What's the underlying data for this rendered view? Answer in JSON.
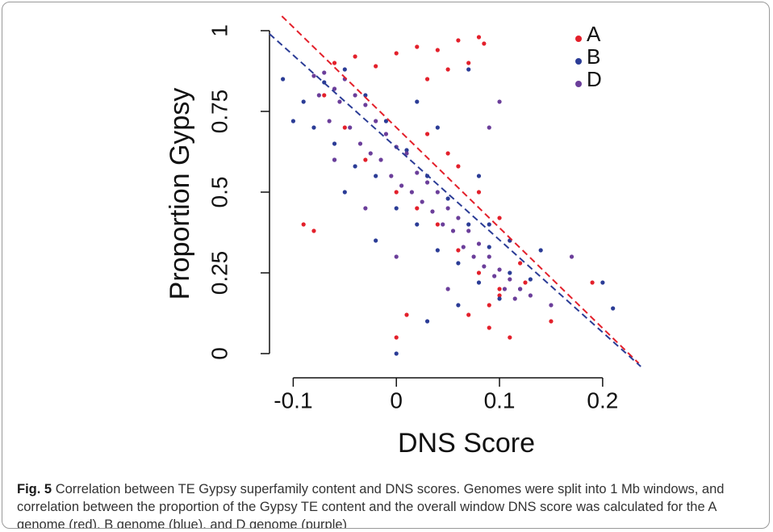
{
  "chart_data": {
    "type": "scatter",
    "xlabel": "DNS Score",
    "ylabel": "Proportion Gypsy",
    "xlim": [
      -0.123,
      0.24
    ],
    "ylim": [
      -0.075,
      1.05
    ],
    "xticks": [
      -0.1,
      0,
      0.1,
      0.2
    ],
    "yticks": [
      0,
      0.25,
      0.5,
      0.75,
      1
    ],
    "legend": "top-right",
    "series": [
      {
        "name": "A",
        "color": "#e3202b",
        "x": [
          -0.06,
          -0.04,
          -0.02,
          0.0,
          0.02,
          0.04,
          0.06,
          0.08,
          0.085,
          0.07,
          0.05,
          0.03,
          0.06,
          0.08,
          0.1,
          0.11,
          0.12,
          0.1,
          0.09,
          0.07,
          -0.07,
          -0.05,
          -0.03,
          0.0,
          0.02,
          0.04,
          0.06,
          0.08,
          0.1,
          0.125,
          0.15,
          0.19,
          -0.09,
          -0.08,
          0.0,
          0.01,
          0.03,
          0.05,
          0.09,
          0.11
        ],
        "values": [
          0.9,
          0.92,
          0.89,
          0.93,
          0.95,
          0.94,
          0.97,
          0.98,
          0.96,
          0.9,
          0.88,
          0.85,
          0.58,
          0.5,
          0.42,
          0.35,
          0.28,
          0.2,
          0.15,
          0.12,
          0.8,
          0.7,
          0.6,
          0.5,
          0.45,
          0.4,
          0.32,
          0.25,
          0.18,
          0.22,
          0.1,
          0.22,
          0.4,
          0.38,
          0.05,
          0.12,
          0.68,
          0.62,
          0.08,
          0.05
        ]
      },
      {
        "name": "B",
        "color": "#2b3c96",
        "x": [
          -0.09,
          -0.08,
          -0.07,
          -0.06,
          -0.05,
          -0.04,
          -0.03,
          -0.02,
          -0.01,
          0.0,
          0.01,
          0.02,
          0.03,
          0.04,
          0.05,
          0.06,
          0.07,
          0.08,
          0.09,
          0.1,
          0.11,
          0.12,
          0.13,
          0.14,
          -0.1,
          -0.11,
          -0.05,
          -0.02,
          0.0,
          0.03,
          0.06,
          0.09,
          0.04,
          0.08,
          0.2,
          0.21,
          0.07,
          -0.06,
          0.02,
          0.11
        ],
        "values": [
          0.78,
          0.7,
          0.84,
          0.65,
          0.88,
          0.58,
          0.8,
          0.55,
          0.72,
          0.45,
          0.63,
          0.4,
          0.55,
          0.32,
          0.48,
          0.28,
          0.4,
          0.22,
          0.33,
          0.17,
          0.25,
          0.2,
          0.23,
          0.32,
          0.72,
          0.85,
          0.5,
          0.35,
          0.0,
          0.1,
          0.15,
          0.4,
          0.7,
          0.55,
          0.22,
          0.14,
          0.88,
          0.6,
          0.78,
          0.35
        ]
      },
      {
        "name": "D",
        "color": "#6b3e9a",
        "x": [
          -0.08,
          -0.075,
          -0.07,
          -0.065,
          -0.06,
          -0.055,
          -0.05,
          -0.045,
          -0.04,
          -0.035,
          -0.03,
          -0.025,
          -0.02,
          -0.015,
          -0.01,
          -0.005,
          0.0,
          0.005,
          0.01,
          0.015,
          0.02,
          0.025,
          0.03,
          0.035,
          0.04,
          0.045,
          0.05,
          0.055,
          0.06,
          0.065,
          0.07,
          0.075,
          0.08,
          0.085,
          0.09,
          0.095,
          0.1,
          0.105,
          0.11,
          0.115,
          0.12,
          0.13,
          0.15,
          0.1,
          0.09,
          -0.06,
          -0.03,
          0.0,
          0.05,
          0.17
        ],
        "values": [
          0.86,
          0.8,
          0.87,
          0.72,
          0.82,
          0.78,
          0.85,
          0.7,
          0.8,
          0.65,
          0.77,
          0.62,
          0.72,
          0.6,
          0.68,
          0.55,
          0.64,
          0.52,
          0.62,
          0.5,
          0.56,
          0.47,
          0.53,
          0.44,
          0.5,
          0.4,
          0.45,
          0.38,
          0.42,
          0.33,
          0.38,
          0.3,
          0.34,
          0.27,
          0.3,
          0.24,
          0.26,
          0.2,
          0.23,
          0.17,
          0.2,
          0.18,
          0.15,
          0.78,
          0.7,
          0.6,
          0.45,
          0.3,
          0.2,
          0.3
        ]
      }
    ],
    "fit_lines": [
      {
        "color": "#e3202b",
        "x": [
          -0.111,
          0.235
        ],
        "values": [
          1.045,
          -0.03
        ]
      },
      {
        "color": "#2b3c96",
        "x": [
          -0.123,
          0.237
        ],
        "values": [
          0.99,
          -0.04
        ]
      }
    ]
  },
  "caption": {
    "label": "Fig. 5",
    "text": "Correlation between TE Gypsy superfamily content and DNS scores. Genomes were split into 1 Mb windows, and correlation between the proportion of the Gypsy TE content and the overall window DNS score was calculated for the A genome (red), B genome (blue), and D genome (purple)"
  }
}
